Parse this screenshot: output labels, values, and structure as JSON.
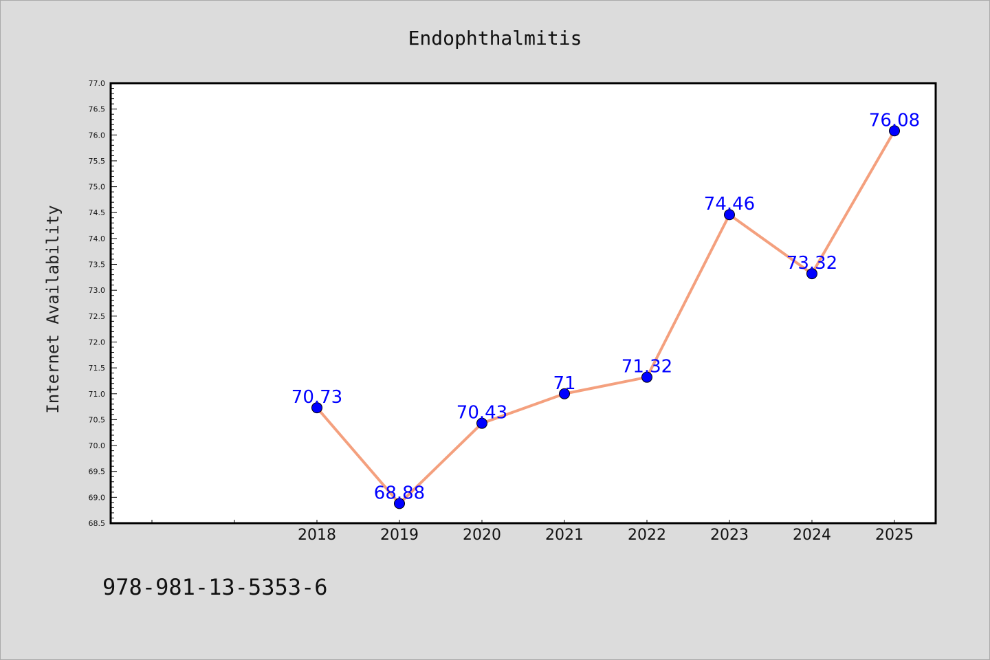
{
  "chart_data": {
    "type": "line",
    "title": "Endophthalmitis",
    "xlabel": "",
    "ylabel": "Internet Availability",
    "categories": [
      "2018",
      "2019",
      "2020",
      "2021",
      "2022",
      "2023",
      "2024",
      "2025"
    ],
    "values": [
      70.73,
      68.88,
      70.43,
      71,
      71.32,
      74.46,
      73.32,
      76.08
    ],
    "data_labels": [
      "70.73",
      "68.88",
      "70.43",
      "71",
      "71.32",
      "74.46",
      "73.32",
      "76.08"
    ],
    "ylim": [
      68.5,
      77.0
    ],
    "yticks": [
      "68.5",
      "69.0",
      "69.5",
      "70.0",
      "70.5",
      "71.0",
      "71.5",
      "72.0",
      "72.5",
      "73.0",
      "73.5",
      "74.0",
      "74.5",
      "75.0",
      "75.5",
      "76.0",
      "76.5",
      "77.0"
    ],
    "grid": false,
    "legend": "none",
    "line_color": "#f4a07e",
    "marker_color": "#0000ff",
    "label_color": "#0000ff"
  },
  "footer": {
    "isbn": "978-981-13-5353-6"
  }
}
